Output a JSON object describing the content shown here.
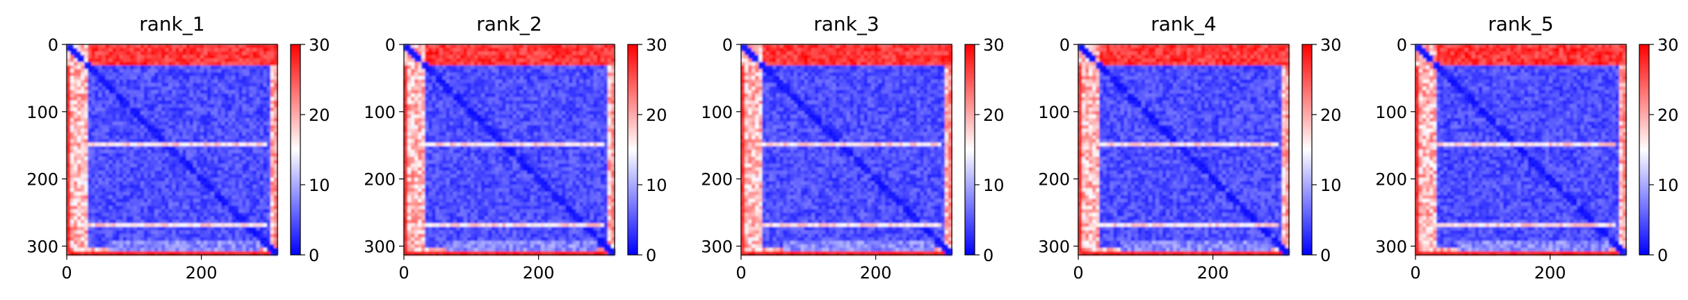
{
  "figure": {
    "background": "#ffffff"
  },
  "chart_data": [
    {
      "type": "heatmap",
      "title": "rank_1",
      "x_range": [
        0,
        313
      ],
      "y_range": [
        313,
        0
      ],
      "x_ticks": [
        0,
        200
      ],
      "y_ticks": [
        0,
        100,
        200,
        300
      ],
      "colorbar": {
        "min": 0,
        "max": 30,
        "ticks": [
          0,
          10,
          20,
          30
        ],
        "colormap": "bwr",
        "colors": [
          "#0000ff",
          "#ffffff",
          "#ff0000"
        ]
      },
      "features": {
        "blocks": [
          [
            0,
            30,
            "low"
          ],
          [
            30,
            250,
            "low"
          ],
          [
            250,
            313,
            "mixed"
          ]
        ],
        "high_bands": [
          55,
          150,
          250,
          268,
          308
        ],
        "diagonal": "low"
      }
    },
    {
      "type": "heatmap",
      "title": "rank_2",
      "x_range": [
        0,
        313
      ],
      "y_range": [
        313,
        0
      ],
      "x_ticks": [
        0,
        200
      ],
      "y_ticks": [
        0,
        100,
        200,
        300
      ],
      "colorbar": {
        "min": 0,
        "max": 30,
        "ticks": [
          0,
          10,
          20,
          30
        ],
        "colormap": "bwr",
        "colors": [
          "#0000ff",
          "#ffffff",
          "#ff0000"
        ]
      },
      "features": {
        "blocks": [
          [
            0,
            30,
            "low"
          ],
          [
            30,
            250,
            "low"
          ],
          [
            250,
            313,
            "mixed"
          ]
        ],
        "high_bands": [
          55,
          150,
          250,
          268,
          308
        ],
        "diagonal": "low"
      }
    },
    {
      "type": "heatmap",
      "title": "rank_3",
      "x_range": [
        0,
        313
      ],
      "y_range": [
        313,
        0
      ],
      "x_ticks": [
        0,
        200
      ],
      "y_ticks": [
        0,
        100,
        200,
        300
      ],
      "colorbar": {
        "min": 0,
        "max": 30,
        "ticks": [
          0,
          10,
          20,
          30
        ],
        "colormap": "bwr",
        "colors": [
          "#0000ff",
          "#ffffff",
          "#ff0000"
        ]
      },
      "features": {
        "blocks": [
          [
            0,
            30,
            "low"
          ],
          [
            30,
            250,
            "low"
          ],
          [
            250,
            313,
            "mixed"
          ]
        ],
        "high_bands": [
          55,
          150,
          250,
          268,
          308
        ],
        "diagonal": "low"
      }
    },
    {
      "type": "heatmap",
      "title": "rank_4",
      "x_range": [
        0,
        313
      ],
      "y_range": [
        313,
        0
      ],
      "x_ticks": [
        0,
        200
      ],
      "y_ticks": [
        0,
        100,
        200,
        300
      ],
      "colorbar": {
        "min": 0,
        "max": 30,
        "ticks": [
          0,
          10,
          20,
          30
        ],
        "colormap": "bwr",
        "colors": [
          "#0000ff",
          "#ffffff",
          "#ff0000"
        ]
      },
      "features": {
        "blocks": [
          [
            0,
            30,
            "low"
          ],
          [
            30,
            250,
            "low"
          ],
          [
            250,
            313,
            "mixed"
          ]
        ],
        "high_bands": [
          55,
          150,
          250,
          268,
          308
        ],
        "diagonal": "low"
      }
    },
    {
      "type": "heatmap",
      "title": "rank_5",
      "x_range": [
        0,
        313
      ],
      "y_range": [
        313,
        0
      ],
      "x_ticks": [
        0,
        200
      ],
      "y_ticks": [
        0,
        100,
        200,
        300
      ],
      "colorbar": {
        "min": 0,
        "max": 30,
        "ticks": [
          0,
          10,
          20,
          30
        ],
        "colormap": "bwr",
        "colors": [
          "#0000ff",
          "#ffffff",
          "#ff0000"
        ]
      },
      "features": {
        "blocks": [
          [
            0,
            30,
            "low"
          ],
          [
            30,
            250,
            "low"
          ],
          [
            250,
            313,
            "mixed"
          ]
        ],
        "high_bands": [
          55,
          150,
          250,
          268,
          308
        ],
        "diagonal": "low"
      }
    }
  ]
}
